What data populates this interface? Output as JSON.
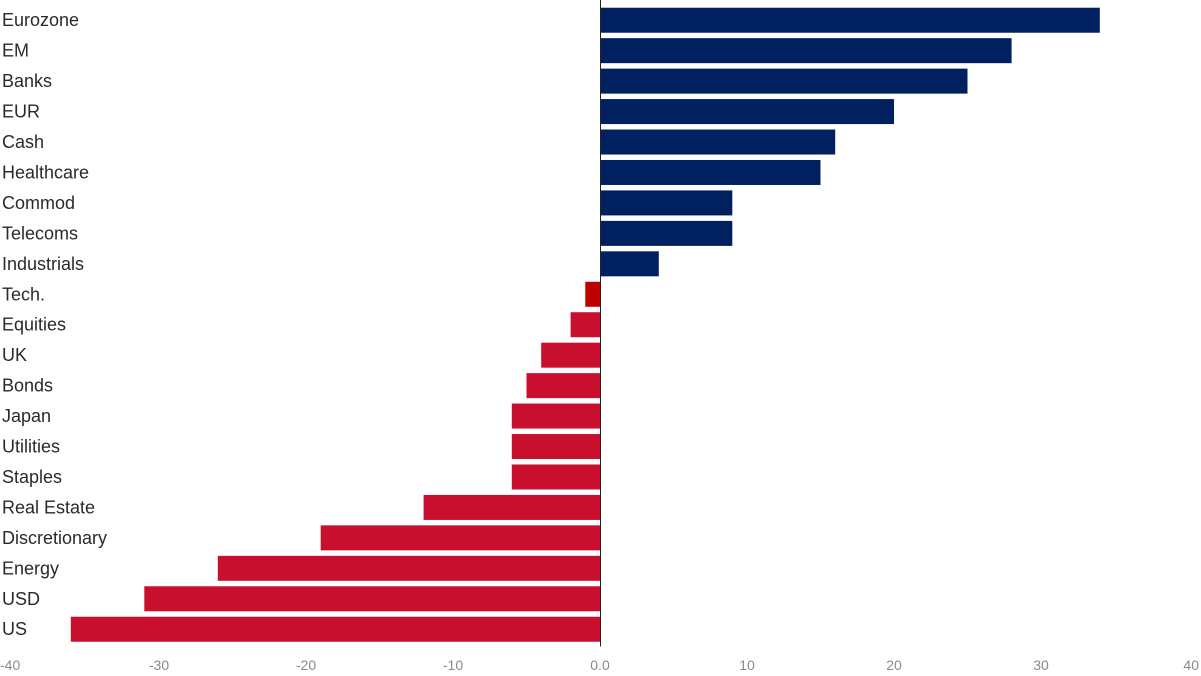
{
  "chart_data": {
    "type": "bar",
    "orientation": "horizontal",
    "categories": [
      "Eurozone",
      "EM",
      "Banks",
      "EUR",
      "Cash",
      "Healthcare",
      "Commod",
      "Telecoms",
      "Industrials",
      "Tech.",
      "Equities",
      "UK",
      "Bonds",
      "Japan",
      "Utilities",
      "Staples",
      "Real Estate",
      "Discretionary",
      "Energy",
      "USD",
      "US"
    ],
    "values": [
      34,
      28,
      25,
      20,
      16,
      15,
      9,
      9,
      4,
      -1,
      -2,
      -4,
      -5,
      -6,
      -6,
      -6,
      -12,
      -19,
      -26,
      -31,
      -36
    ],
    "highlight": {
      "category": "Tech.",
      "color": "#c00000"
    },
    "colors": {
      "positive": "#002060",
      "negative": "#c8102e"
    },
    "xlim": [
      -40,
      40
    ],
    "xticks": [
      "-40",
      "-30",
      "-20",
      "-10",
      "0.0",
      "10",
      "20",
      "30",
      "40"
    ],
    "xtick_values": [
      -40,
      -30,
      -20,
      -10,
      0,
      10,
      20,
      30,
      40
    ],
    "title": "",
    "xlabel": "",
    "ylabel": "",
    "grid": false,
    "legend": "none"
  }
}
